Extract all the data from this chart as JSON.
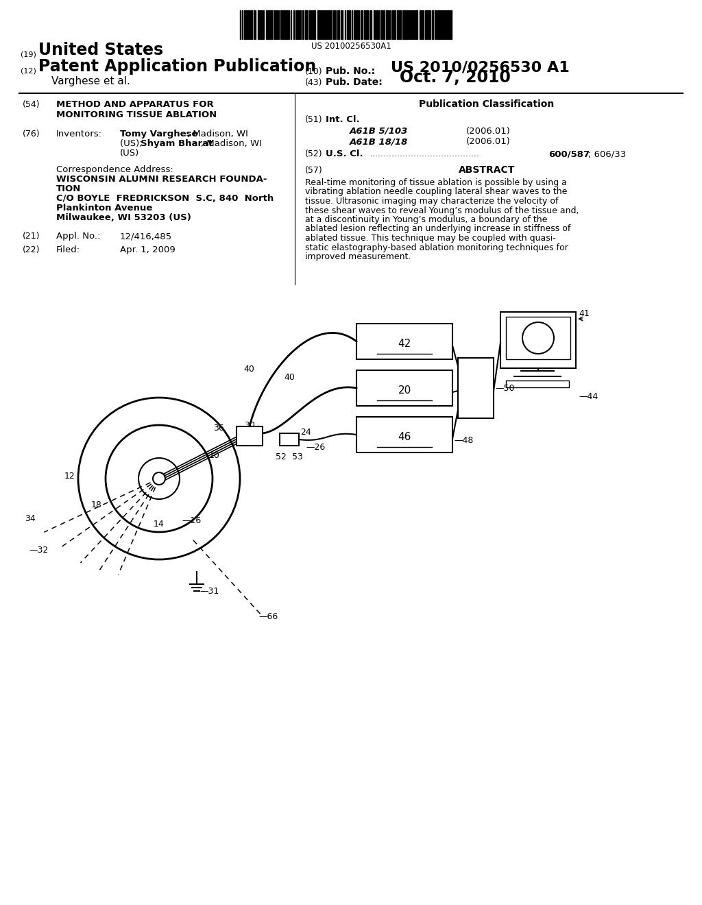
{
  "background_color": "#ffffff",
  "barcode_text": "US 20100256530A1",
  "title_line1": "METHOD AND APPARATUS FOR",
  "title_line2": "MONITORING TISSUE ABLATION",
  "abstract_lines": [
    "Real-time monitoring of tissue ablation is possible by using a",
    "vibrating ablation needle coupling lateral shear waves to the",
    "tissue. Ultrasonic imaging may characterize the velocity of",
    "these shear waves to reveal Young’s modulus of the tissue and,",
    "at a discontinuity in Young’s modulus, a boundary of the",
    "ablated lesion reflecting an underlying increase in stiffness of",
    "ablated tissue. This technique may be coupled with quasi-",
    "static elastography-based ablation monitoring techniques for",
    "improved measurement."
  ]
}
